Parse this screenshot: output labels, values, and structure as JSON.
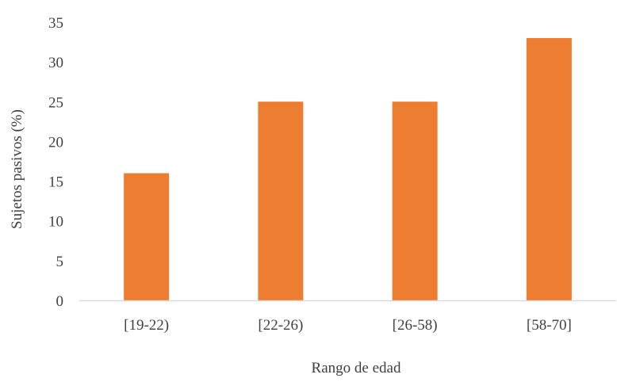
{
  "chart_data": {
    "type": "bar",
    "categories": [
      "[19-22)",
      "[22-26)",
      "[26-58)",
      "[58-70]"
    ],
    "values": [
      16,
      25,
      25,
      33
    ],
    "title": "",
    "xlabel": "Rango de edad",
    "ylabel": "Sujetos pasivos (%)",
    "ylim": [
      0,
      35
    ],
    "yticks": [
      "0",
      "5",
      "10",
      "15",
      "20",
      "25",
      "30",
      "35"
    ],
    "grid": false,
    "legend": "none",
    "bar_color": "#ED7D31",
    "axis_color": "#D9D9D9"
  }
}
